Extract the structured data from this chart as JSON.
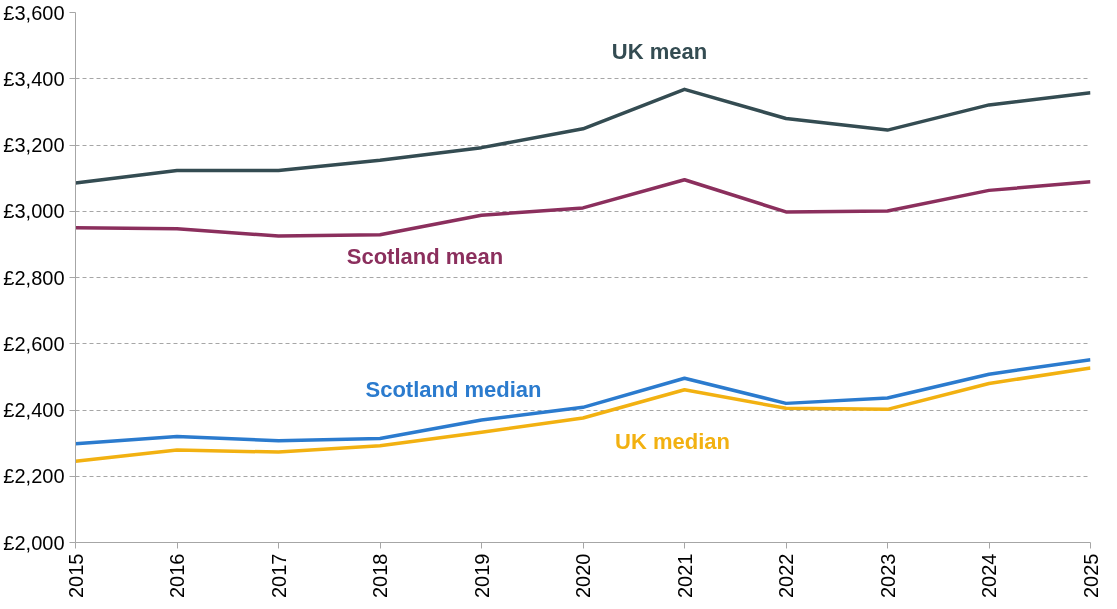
{
  "chart_data": {
    "type": "line",
    "x": [
      2015,
      2016,
      2017,
      2018,
      2019,
      2020,
      2021,
      2022,
      2023,
      2024,
      2025
    ],
    "series": [
      {
        "name": "UK mean",
        "color": "#344c52",
        "values": [
          3085,
          3123,
          3123,
          3154,
          3192,
          3249,
          3368,
          3280,
          3245,
          3321,
          3358
        ]
      },
      {
        "name": "Scotland mean",
        "color": "#8b2f5d",
        "values": [
          2950,
          2947,
          2925,
          2929,
          2988,
          3010,
          3095,
          2998,
          3001,
          3063,
          3089
        ]
      },
      {
        "name": "Scotland median",
        "color": "#2b7bce",
        "values": [
          2298,
          2320,
          2307,
          2314,
          2370,
          2408,
          2496,
          2420,
          2436,
          2508,
          2552
        ]
      },
      {
        "name": "UK median",
        "color": "#f2b111",
        "values": [
          2245,
          2279,
          2273,
          2292,
          2333,
          2376,
          2461,
          2405,
          2402,
          2480,
          2527
        ]
      }
    ],
    "xlim": [
      2015,
      2025
    ],
    "xticks": [
      2015,
      2016,
      2017,
      2018,
      2019,
      2020,
      2021,
      2022,
      2023,
      2024,
      2025
    ],
    "ylim": [
      2000,
      3600
    ],
    "yticks": [
      {
        "value": 2000,
        "label": "£2,000"
      },
      {
        "value": 2200,
        "label": "£2,200"
      },
      {
        "value": 2400,
        "label": "£2,400"
      },
      {
        "value": 2600,
        "label": "£2,600"
      },
      {
        "value": 2800,
        "label": "£2,800"
      },
      {
        "value": 3000,
        "label": "£3,000"
      },
      {
        "value": 3200,
        "label": "£3,200"
      },
      {
        "value": 3400,
        "label": "£3,400"
      },
      {
        "value": 3600,
        "label": "£3,600"
      }
    ],
    "grid": "y",
    "legend": false,
    "marker": "none",
    "line_style": "solid"
  }
}
